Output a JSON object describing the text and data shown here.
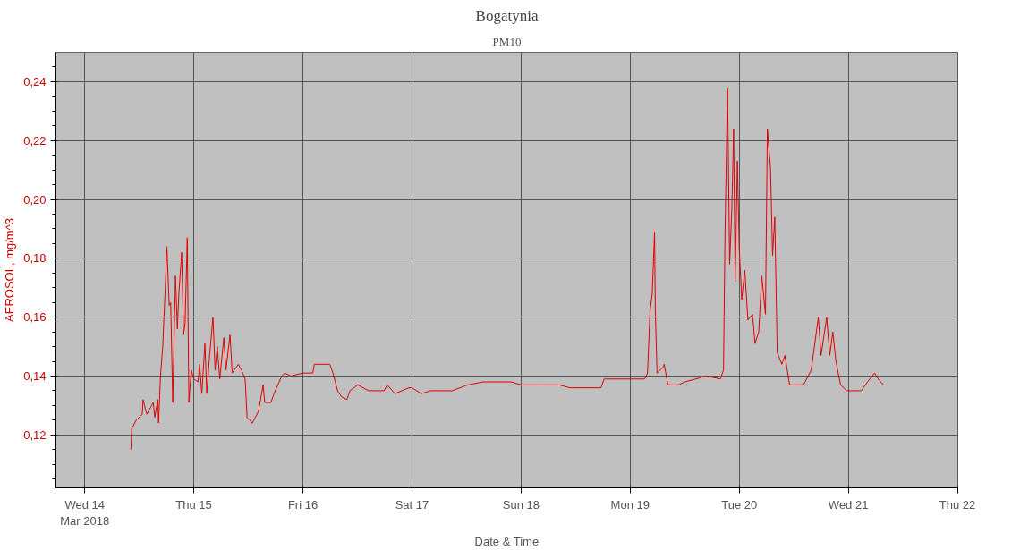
{
  "chart_data": {
    "type": "line",
    "title": "Bogatynia",
    "subtitle": "PM10",
    "xlabel": "Date & Time",
    "ylabel": "AEROSOL, mg/m^3",
    "xlim": [
      "2018-03-13T17:40",
      "2018-03-22T00:05"
    ],
    "ylim": [
      0.102,
      0.25
    ],
    "xticks": [
      {
        "value": "2018-03-14",
        "label": "Wed 14\nMar 2018"
      },
      {
        "value": "2018-03-15",
        "label": "Thu 15"
      },
      {
        "value": "2018-03-16",
        "label": "Fri 16"
      },
      {
        "value": "2018-03-17",
        "label": "Sat 17"
      },
      {
        "value": "2018-03-18",
        "label": "Sun 18"
      },
      {
        "value": "2018-03-19",
        "label": "Mon 19"
      },
      {
        "value": "2018-03-20",
        "label": "Tue 20"
      },
      {
        "value": "2018-03-21",
        "label": "Wed 21"
      },
      {
        "value": "2018-03-22",
        "label": "Thu 22"
      }
    ],
    "yticks": [
      {
        "value": 0.12,
        "label": "0,12"
      },
      {
        "value": 0.14,
        "label": "0,14"
      },
      {
        "value": 0.16,
        "label": "0,16"
      },
      {
        "value": 0.18,
        "label": "0,18"
      },
      {
        "value": 0.2,
        "label": "0,20"
      },
      {
        "value": 0.22,
        "label": "0,22"
      },
      {
        "value": 0.24,
        "label": "0,24"
      }
    ],
    "grid": true,
    "series": [
      {
        "color": "#e00000",
        "x": [
          "2018-03-14T10:10",
          "2018-03-14T10:20",
          "2018-03-14T11:20",
          "2018-03-14T12:40",
          "2018-03-14T12:50",
          "2018-03-14T13:40",
          "2018-03-14T15:05",
          "2018-03-14T15:25",
          "2018-03-14T16:05",
          "2018-03-14T16:15",
          "2018-03-14T16:40",
          "2018-03-14T17:10",
          "2018-03-14T17:40",
          "2018-03-14T18:05",
          "2018-03-14T18:35",
          "2018-03-14T18:55",
          "2018-03-14T19:22",
          "2018-03-14T19:58",
          "2018-03-14T20:23",
          "2018-03-14T20:43",
          "2018-03-14T21:20",
          "2018-03-14T21:45",
          "2018-03-14T22:05",
          "2018-03-14T22:34",
          "2018-03-14T22:55",
          "2018-03-14T23:27",
          "2018-03-15T00:00",
          "2018-03-15T00:57",
          "2018-03-15T01:17",
          "2018-03-15T01:46",
          "2018-03-15T02:27",
          "2018-03-15T02:51",
          "2018-03-15T03:32",
          "2018-03-15T04:13",
          "2018-03-15T04:41",
          "2018-03-15T05:10",
          "2018-03-15T05:43",
          "2018-03-15T06:36",
          "2018-03-15T07:05",
          "2018-03-15T07:58",
          "2018-03-15T08:27",
          "2018-03-15T09:48",
          "2018-03-15T10:29",
          "2018-03-15T11:18",
          "2018-03-15T11:43",
          "2018-03-15T12:52",
          "2018-03-15T14:14",
          "2018-03-15T15:15",
          "2018-03-15T15:36",
          "2018-03-15T16:58",
          "2018-03-15T17:39",
          "2018-03-15T19:21",
          "2018-03-15T20:02",
          "2018-03-15T21:24",
          "2018-03-16T00:00",
          "2018-03-16T02:11",
          "2018-03-16T02:31",
          "2018-03-16T05:56",
          "2018-03-16T06:37",
          "2018-03-16T07:38",
          "2018-03-16T08:27",
          "2018-03-16T09:40",
          "2018-03-16T10:22",
          "2018-03-16T12:04",
          "2018-03-16T14:27",
          "2018-03-16T17:52",
          "2018-03-16T18:33",
          "2018-03-16T20:15",
          "2018-03-16T23:19",
          "2018-03-17T00:00",
          "2018-03-17T02:03",
          "2018-03-17T04:06",
          "2018-03-17T08:52",
          "2018-03-17T12:16",
          "2018-03-17T15:41",
          "2018-03-17T21:49",
          "2018-03-18T00:00",
          "2018-03-18T03:57",
          "2018-03-18T08:23",
          "2018-03-18T10:46",
          "2018-03-18T17:35",
          "2018-03-18T18:16",
          "2018-03-18T20:59",
          "2018-03-19T00:00",
          "2018-03-19T03:12",
          "2018-03-19T03:49",
          "2018-03-19T04:22",
          "2018-03-19T04:51",
          "2018-03-19T05:22",
          "2018-03-19T05:32",
          "2018-03-19T05:55",
          "2018-03-19T07:15",
          "2018-03-19T07:29",
          "2018-03-19T08:18",
          "2018-03-19T10:40",
          "2018-03-19T12:02",
          "2018-03-19T16:48",
          "2018-03-19T19:51",
          "2018-03-19T20:32",
          "2018-03-19T20:52",
          "2018-03-19T21:25",
          "2018-03-19T21:53",
          "2018-03-19T22:22",
          "2018-03-19T22:46",
          "2018-03-19T23:06",
          "2018-03-19T23:35",
          "2018-03-20T00:00",
          "2018-03-20T00:33",
          "2018-03-20T01:13",
          "2018-03-20T01:54",
          "2018-03-20T02:55",
          "2018-03-20T03:28",
          "2018-03-20T04:17",
          "2018-03-20T04:57",
          "2018-03-20T05:46",
          "2018-03-20T06:11",
          "2018-03-20T06:52",
          "2018-03-20T07:20",
          "2018-03-20T07:49",
          "2018-03-20T08:21",
          "2018-03-20T09:22",
          "2018-03-20T10:03",
          "2018-03-20T11:04",
          "2018-03-20T14:08",
          "2018-03-20T15:50",
          "2018-03-20T17:24",
          "2018-03-20T18:00",
          "2018-03-20T19:14",
          "2018-03-20T19:55",
          "2018-03-20T20:35",
          "2018-03-20T21:16",
          "2018-03-20T22:18",
          "2018-03-20T23:39",
          "2018-03-21T00:00",
          "2018-03-21T02:51",
          "2018-03-21T04:13",
          "2018-03-21T05:46",
          "2018-03-21T06:35",
          "2018-03-21T07:44"
        ],
        "values": [
          0.115,
          0.122,
          0.125,
          0.127,
          0.132,
          0.127,
          0.131,
          0.126,
          0.132,
          0.124,
          0.14,
          0.15,
          0.168,
          0.184,
          0.164,
          0.165,
          0.131,
          0.174,
          0.156,
          0.168,
          0.182,
          0.154,
          0.158,
          0.187,
          0.131,
          0.142,
          0.139,
          0.138,
          0.144,
          0.134,
          0.151,
          0.134,
          0.148,
          0.16,
          0.142,
          0.15,
          0.139,
          0.153,
          0.142,
          0.154,
          0.141,
          0.144,
          0.142,
          0.139,
          0.126,
          0.124,
          0.128,
          0.137,
          0.131,
          0.131,
          0.134,
          0.14,
          0.141,
          0.14,
          0.141,
          0.141,
          0.144,
          0.144,
          0.141,
          0.135,
          0.133,
          0.132,
          0.135,
          0.137,
          0.135,
          0.135,
          0.137,
          0.134,
          0.136,
          0.136,
          0.134,
          0.135,
          0.135,
          0.137,
          0.138,
          0.138,
          0.137,
          0.137,
          0.137,
          0.136,
          0.136,
          0.139,
          0.139,
          0.139,
          0.139,
          0.141,
          0.162,
          0.168,
          0.189,
          0.162,
          0.141,
          0.143,
          0.144,
          0.137,
          0.137,
          0.138,
          0.14,
          0.139,
          0.142,
          0.188,
          0.238,
          0.178,
          0.197,
          0.224,
          0.172,
          0.213,
          0.183,
          0.166,
          0.176,
          0.159,
          0.161,
          0.151,
          0.155,
          0.174,
          0.161,
          0.224,
          0.211,
          0.181,
          0.194,
          0.148,
          0.144,
          0.147,
          0.137,
          0.137,
          0.142,
          0.16,
          0.147,
          0.16,
          0.147,
          0.155,
          0.145,
          0.137,
          0.135,
          0.135,
          0.135,
          0.138,
          0.141,
          0.139,
          0.137
        ]
      }
    ]
  }
}
